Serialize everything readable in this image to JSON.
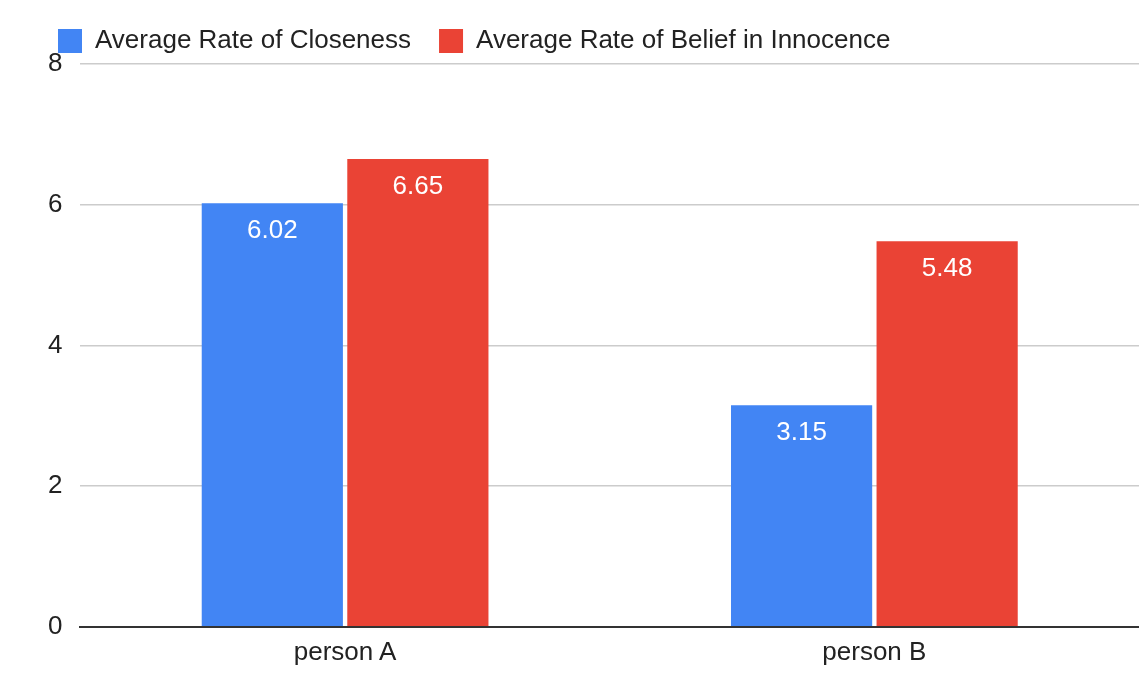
{
  "chart_data": {
    "type": "bar",
    "categories": [
      "person A",
      "person B"
    ],
    "series": [
      {
        "name": "Average Rate of Closeness",
        "color": "#4285f4",
        "values": [
          6.02,
          3.15
        ]
      },
      {
        "name": "Average Rate of Belief in Innocence",
        "color": "#ea4335",
        "values": [
          6.65,
          5.48
        ]
      }
    ],
    "ylim": [
      0,
      8
    ],
    "yticks": [
      0,
      2,
      4,
      6,
      8
    ],
    "grid": "y",
    "legend": "top left",
    "data_labels": true
  }
}
